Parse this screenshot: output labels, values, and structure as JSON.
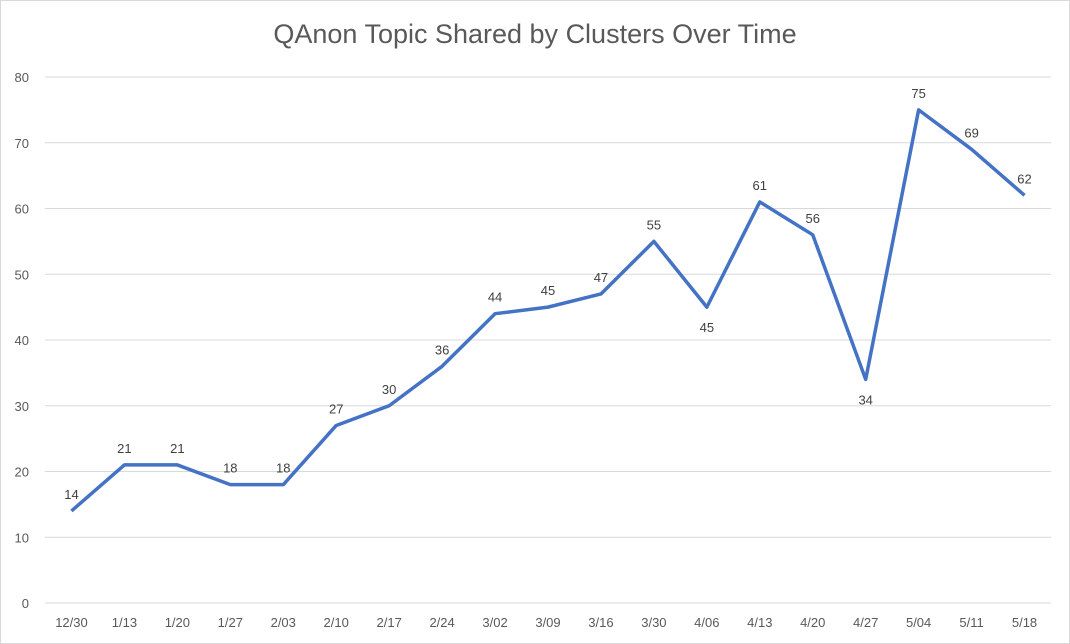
{
  "chart_data": {
    "type": "line",
    "title": "QAnon Topic Shared by Clusters Over Time",
    "xlabel": "",
    "ylabel": "",
    "categories": [
      "12/30",
      "1/13",
      "1/20",
      "1/27",
      "2/03",
      "2/10",
      "2/17",
      "2/24",
      "3/02",
      "3/09",
      "3/16",
      "3/30",
      "4/06",
      "4/13",
      "4/20",
      "4/27",
      "5/04",
      "5/11",
      "5/18"
    ],
    "series": [
      {
        "name": "QAnon Topic Shared",
        "values": [
          14,
          21,
          21,
          18,
          18,
          27,
          30,
          36,
          44,
          45,
          47,
          55,
          45,
          61,
          56,
          34,
          75,
          69,
          62
        ],
        "color": "#4472c4"
      }
    ],
    "label_below": [
      false,
      false,
      false,
      false,
      false,
      false,
      false,
      false,
      false,
      false,
      false,
      false,
      true,
      false,
      false,
      true,
      false,
      false,
      false
    ],
    "ylim": [
      0,
      80
    ],
    "yticks": [
      0,
      10,
      20,
      30,
      40,
      50,
      60,
      70,
      80
    ],
    "grid": true,
    "legend": "none",
    "gridline_color": "#d9d9d9"
  }
}
